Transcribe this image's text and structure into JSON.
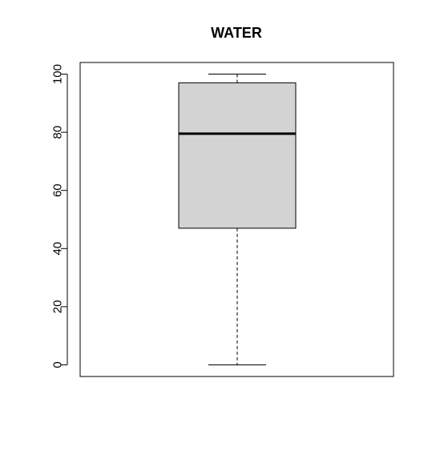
{
  "chart_data": {
    "type": "boxplot",
    "title": "WATER",
    "xlabel": "",
    "ylabel": "",
    "ylim": [
      -4,
      104
    ],
    "yticks": [
      0,
      20,
      40,
      60,
      80,
      100
    ],
    "ytick_labels": [
      "0",
      "20",
      "40",
      "60",
      "80",
      "100"
    ],
    "grid": false,
    "series": [
      {
        "whisker_low": 0,
        "q1": 47,
        "median": 79.5,
        "q3": 97,
        "whisker_high": 100
      }
    ],
    "colors": {
      "box_fill": "#d3d3d3",
      "stroke": "#000000",
      "background": "#ffffff"
    }
  }
}
